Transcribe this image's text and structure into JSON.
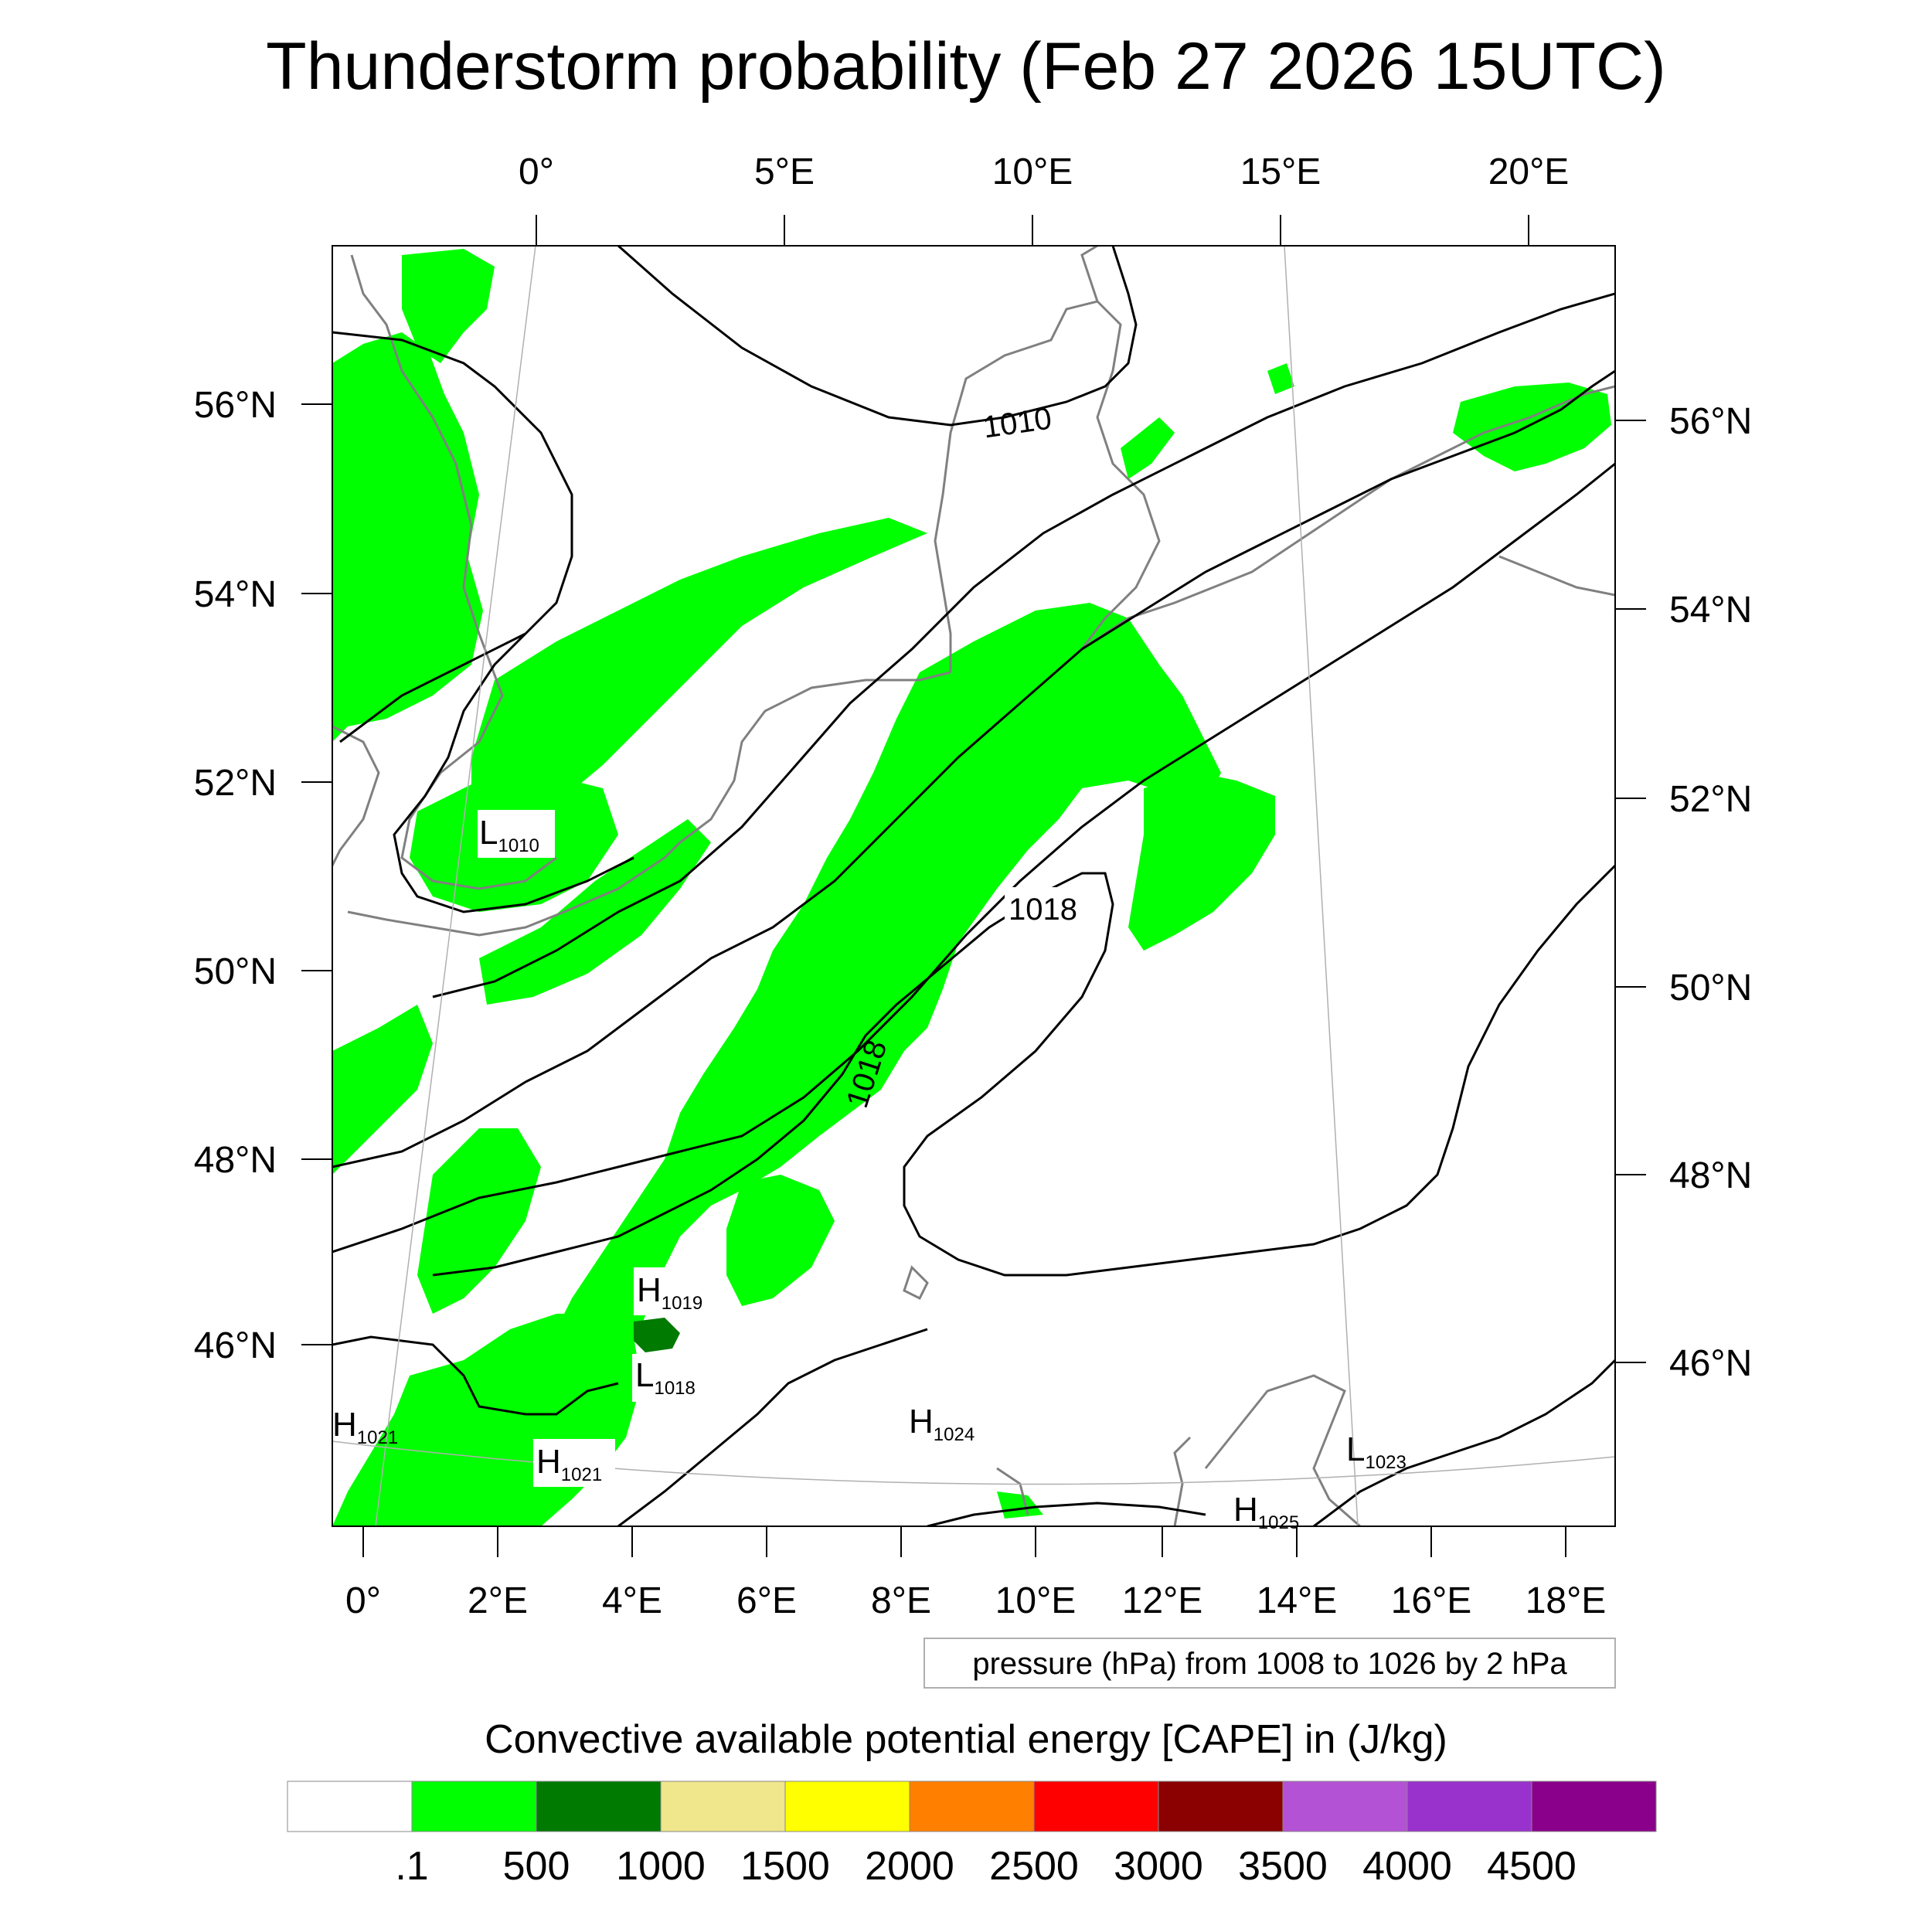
{
  "title": "Thunderstorm probability (Feb 27 2026 15UTC)",
  "map": {
    "top_lon_labels": [
      "0°",
      "5°E",
      "10°E",
      "15°E",
      "20°E"
    ],
    "bottom_lon_labels": [
      "0°",
      "2°E",
      "4°E",
      "6°E",
      "8°E",
      "10°E",
      "12°E",
      "14°E",
      "16°E",
      "18°E"
    ],
    "left_lat_labels": [
      "56°N",
      "54°N",
      "52°N",
      "50°N",
      "48°N",
      "46°N"
    ],
    "right_lat_labels": [
      "56°N",
      "54°N",
      "52°N",
      "50°N",
      "48°N",
      "46°N"
    ],
    "contour_labels": [
      "1010",
      "1018",
      "1018"
    ],
    "centers": [
      {
        "letter": "L",
        "value": "1010"
      },
      {
        "letter": "H",
        "value": "1019"
      },
      {
        "letter": "L",
        "value": "1018"
      },
      {
        "letter": "H",
        "value": "1021"
      },
      {
        "letter": "H",
        "value": "1021"
      },
      {
        "letter": "H",
        "value": "1024"
      },
      {
        "letter": "L",
        "value": "1023"
      },
      {
        "letter": "H",
        "value": "1025"
      }
    ],
    "colors": {
      "cape_low": "#00ff00",
      "cape_mid": "#007a00",
      "coastline": "#808080",
      "isobar": "#000000"
    }
  },
  "contour_note": "pressure (hPa) from 1008 to 1026 by 2 hPa",
  "colorbar": {
    "title": "Convective available potential energy [CAPE] in (J/kg)",
    "labels": [
      ".1",
      "500",
      "1000",
      "1500",
      "2000",
      "2500",
      "3000",
      "3500",
      "4000",
      "4500"
    ],
    "colors": [
      "#ffffff",
      "#00ff00",
      "#007a00",
      "#f0e68c",
      "#ffff00",
      "#ff8000",
      "#ff0000",
      "#8b0000",
      "#b452d6",
      "#9932cc",
      "#8b008b"
    ]
  }
}
